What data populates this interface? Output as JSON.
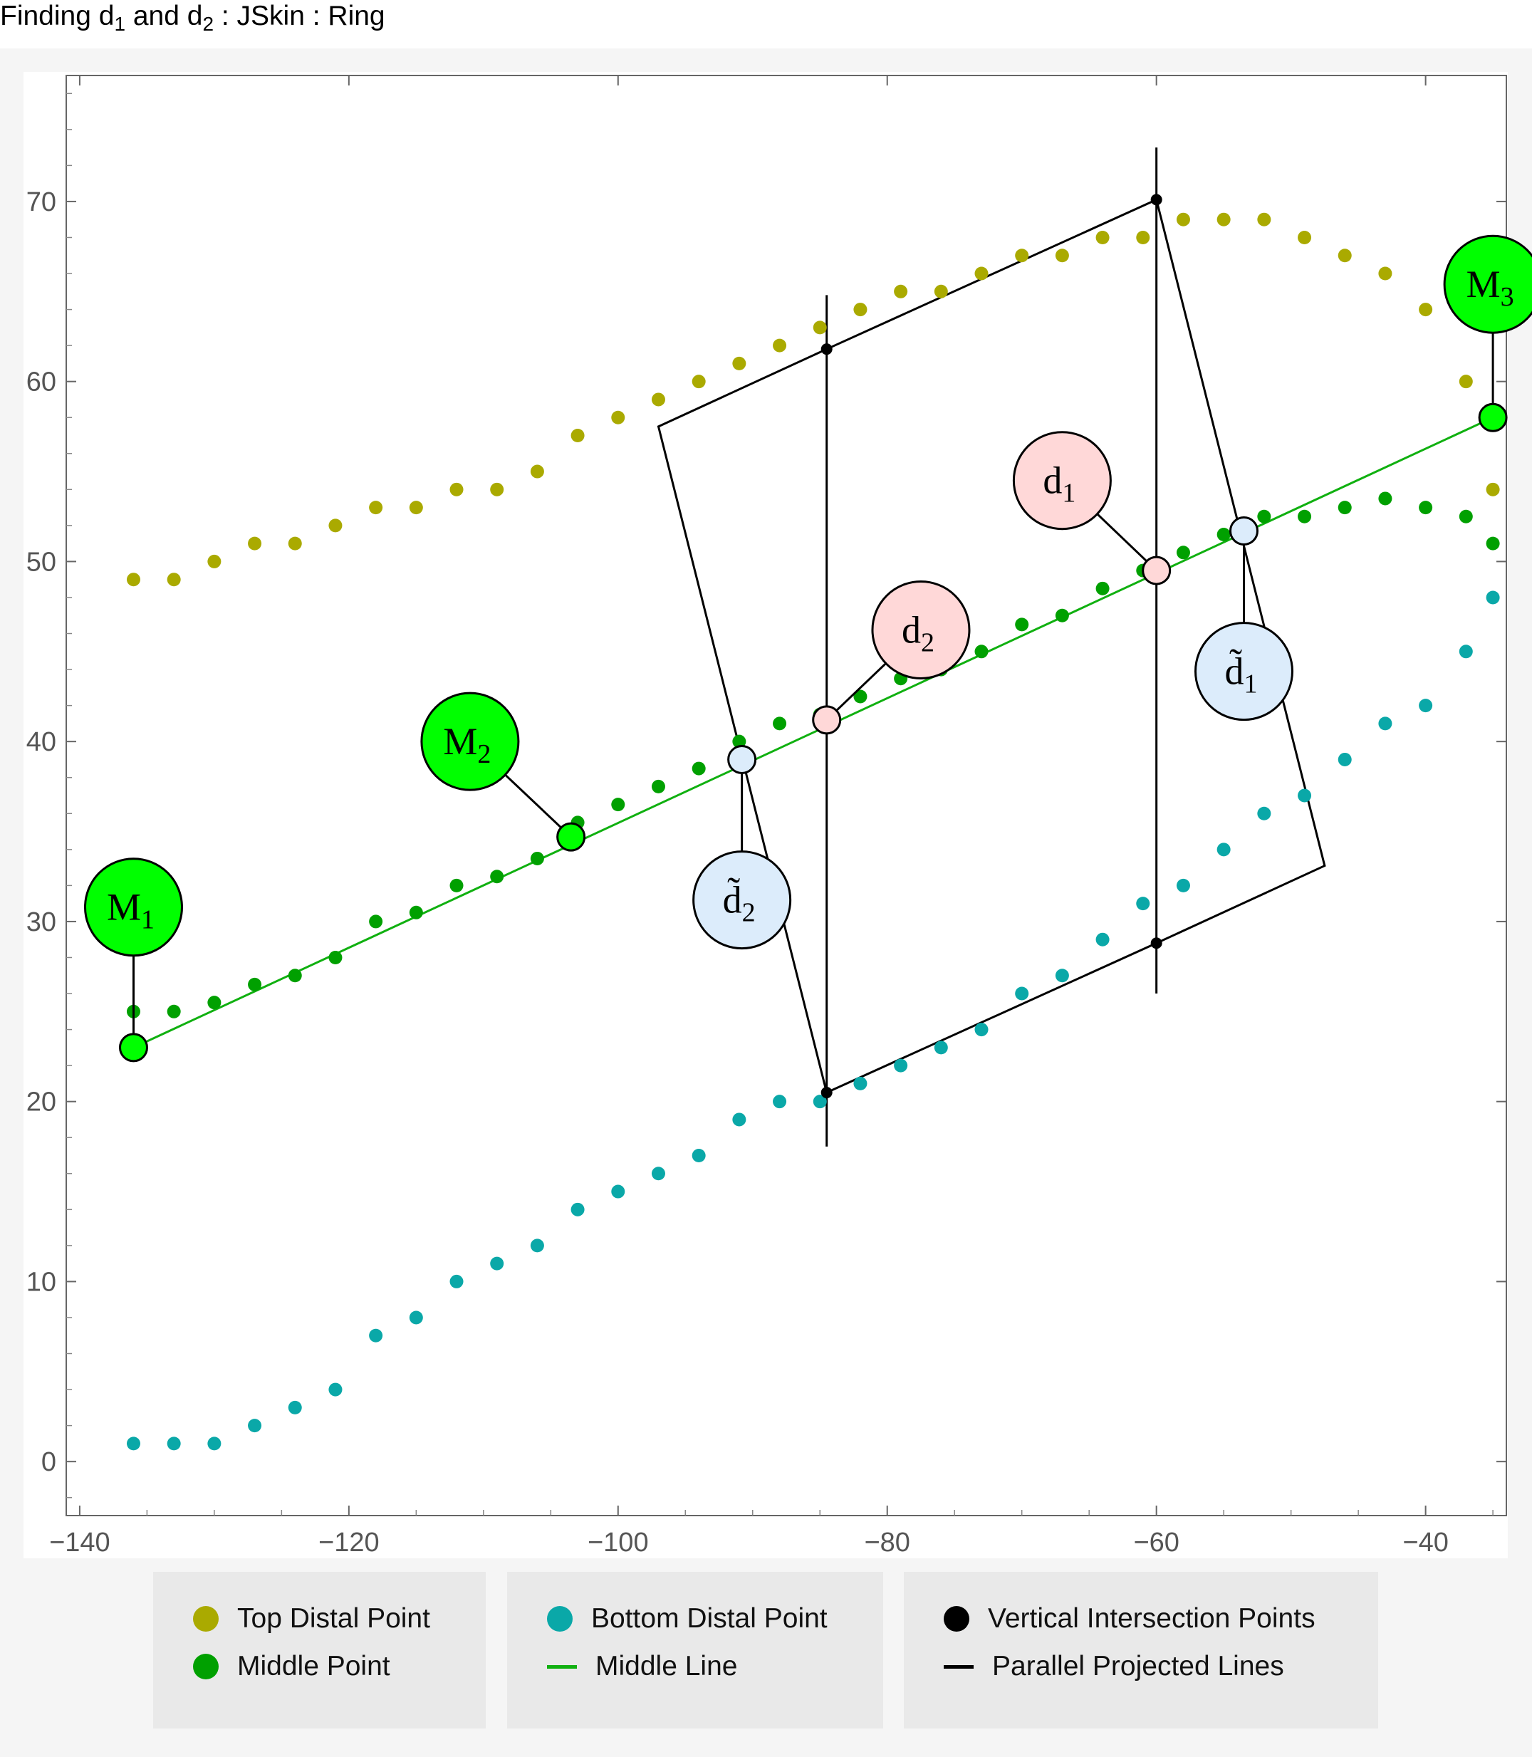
{
  "title": {
    "text": "Finding d",
    "sub1": "1",
    "mid": " and d",
    "sub2": "2",
    "tail": " : JSkin : Ring"
  },
  "legend": {
    "top_distal": "Top Distal Point",
    "middle_point": "Middle Point",
    "bottom_distal": "Bottom Distal Point",
    "middle_line": "Middle Line",
    "vertical_points": "Vertical Intersection Points",
    "parallel_lines": "Parallel Projected Lines"
  },
  "colors": {
    "top": "#aaaa00",
    "middle": "#00a000",
    "bottom": "#0aa8a8",
    "middle_line": "#10b010",
    "marker_green": "#00ff00",
    "marker_pink": "#ffd8d8",
    "marker_blue": "#dcecfb",
    "black": "#000000"
  },
  "chart_data": {
    "type": "scatter",
    "xlim": [
      -141,
      -34
    ],
    "ylim": [
      -3,
      77
    ],
    "xticks": [
      -140,
      -120,
      -100,
      -80,
      -60,
      -40
    ],
    "yticks": [
      0,
      10,
      20,
      30,
      40,
      50,
      60,
      70
    ],
    "grid": false,
    "series": [
      {
        "name": "Top Distal Point",
        "x": [
          -136,
          -133,
          -130,
          -127,
          -124,
          -121,
          -118,
          -115,
          -112,
          -109,
          -106,
          -103,
          -100,
          -97,
          -94,
          -91,
          -88,
          -85,
          -82,
          -79,
          -76,
          -73,
          -70,
          -67,
          -64,
          -61,
          -58,
          -55,
          -52,
          -49,
          -46,
          -43,
          -40,
          -37,
          -35
        ],
        "y": [
          49,
          49,
          50,
          51,
          51,
          52,
          53,
          53,
          54,
          54,
          55,
          57,
          58,
          59,
          60,
          61,
          62,
          63,
          64,
          65,
          65,
          66,
          67,
          67,
          68,
          68,
          69,
          69,
          69,
          68,
          67,
          66,
          64,
          60,
          54
        ]
      },
      {
        "name": "Middle Point",
        "x": [
          -136,
          -133,
          -130,
          -127,
          -124,
          -121,
          -118,
          -115,
          -112,
          -109,
          -106,
          -103,
          -100,
          -97,
          -94,
          -91,
          -88,
          -85,
          -82,
          -79,
          -76,
          -73,
          -70,
          -67,
          -64,
          -61,
          -58,
          -55,
          -52,
          -49,
          -46,
          -43,
          -40,
          -37,
          -35
        ],
        "y": [
          25,
          25,
          25.5,
          26.5,
          27,
          28,
          30,
          30.5,
          32,
          32.5,
          33.5,
          35.5,
          36.5,
          37.5,
          38.5,
          40,
          41,
          41.5,
          42.5,
          43.5,
          44,
          45,
          46.5,
          47,
          48.5,
          49.5,
          50.5,
          51.5,
          52.5,
          52.5,
          53,
          53.5,
          53,
          52.5,
          51
        ]
      },
      {
        "name": "Bottom Distal Point",
        "x": [
          -136,
          -133,
          -130,
          -127,
          -124,
          -121,
          -118,
          -115,
          -112,
          -109,
          -106,
          -103,
          -100,
          -97,
          -94,
          -91,
          -88,
          -85,
          -82,
          -79,
          -76,
          -73,
          -70,
          -67,
          -64,
          -61,
          -58,
          -55,
          -52,
          -49,
          -46,
          -43,
          -40,
          -37,
          -35
        ],
        "y": [
          1,
          1,
          1,
          2,
          3,
          4,
          7,
          8,
          10,
          11,
          12,
          14,
          15,
          16,
          17,
          19,
          20,
          20,
          21,
          22,
          23,
          24,
          26,
          27,
          29,
          31,
          32,
          34,
          36,
          37,
          39,
          41,
          42,
          45,
          48
        ]
      }
    ],
    "middle_line": {
      "x": [
        -136,
        -35
      ],
      "y": [
        23,
        58
      ]
    },
    "vertical_lines": [
      {
        "x": -84.5,
        "y": [
          17.5,
          64.8
        ]
      },
      {
        "x": -60,
        "y": [
          26,
          73
        ]
      }
    ],
    "vertical_intersection_points": {
      "x": [
        -84.5,
        -60,
        -84.5,
        -60
      ],
      "y": [
        61.8,
        70.1,
        20.5,
        28.8
      ]
    },
    "parallel_polygon": {
      "x": [
        -97,
        -84.5,
        -60,
        -47.5,
        -60,
        -84.5
      ],
      "y": [
        57.5,
        61.8,
        70.1,
        33.1,
        28.8,
        20.5
      ]
    },
    "markers": [
      {
        "label": "M",
        "sub": "1",
        "color": "marker_green",
        "x": -136,
        "y": 23,
        "lx": -136,
        "ly": 30.8
      },
      {
        "label": "M",
        "sub": "2",
        "color": "marker_green",
        "x": -103.5,
        "y": 34.7,
        "lx": -111,
        "ly": 40
      },
      {
        "label": "M",
        "sub": "3",
        "color": "marker_green",
        "x": -35,
        "y": 58,
        "lx": -35,
        "ly": 65.4
      },
      {
        "label": "d",
        "sub": "1",
        "color": "marker_pink",
        "x": -60,
        "y": 49.5,
        "lx": -67,
        "ly": 54.5
      },
      {
        "label": "d",
        "sub": "2",
        "color": "marker_pink",
        "x": -84.5,
        "y": 41.2,
        "lx": -77.5,
        "ly": 46.2
      },
      {
        "label": "d̃",
        "sub": "1",
        "color": "marker_blue",
        "x": -53.5,
        "y": 51.7,
        "lx": -53.5,
        "ly": 43.9
      },
      {
        "label": "d̃",
        "sub": "2",
        "color": "marker_blue",
        "x": -90.8,
        "y": 39,
        "lx": -90.8,
        "ly": 31.2
      }
    ]
  }
}
